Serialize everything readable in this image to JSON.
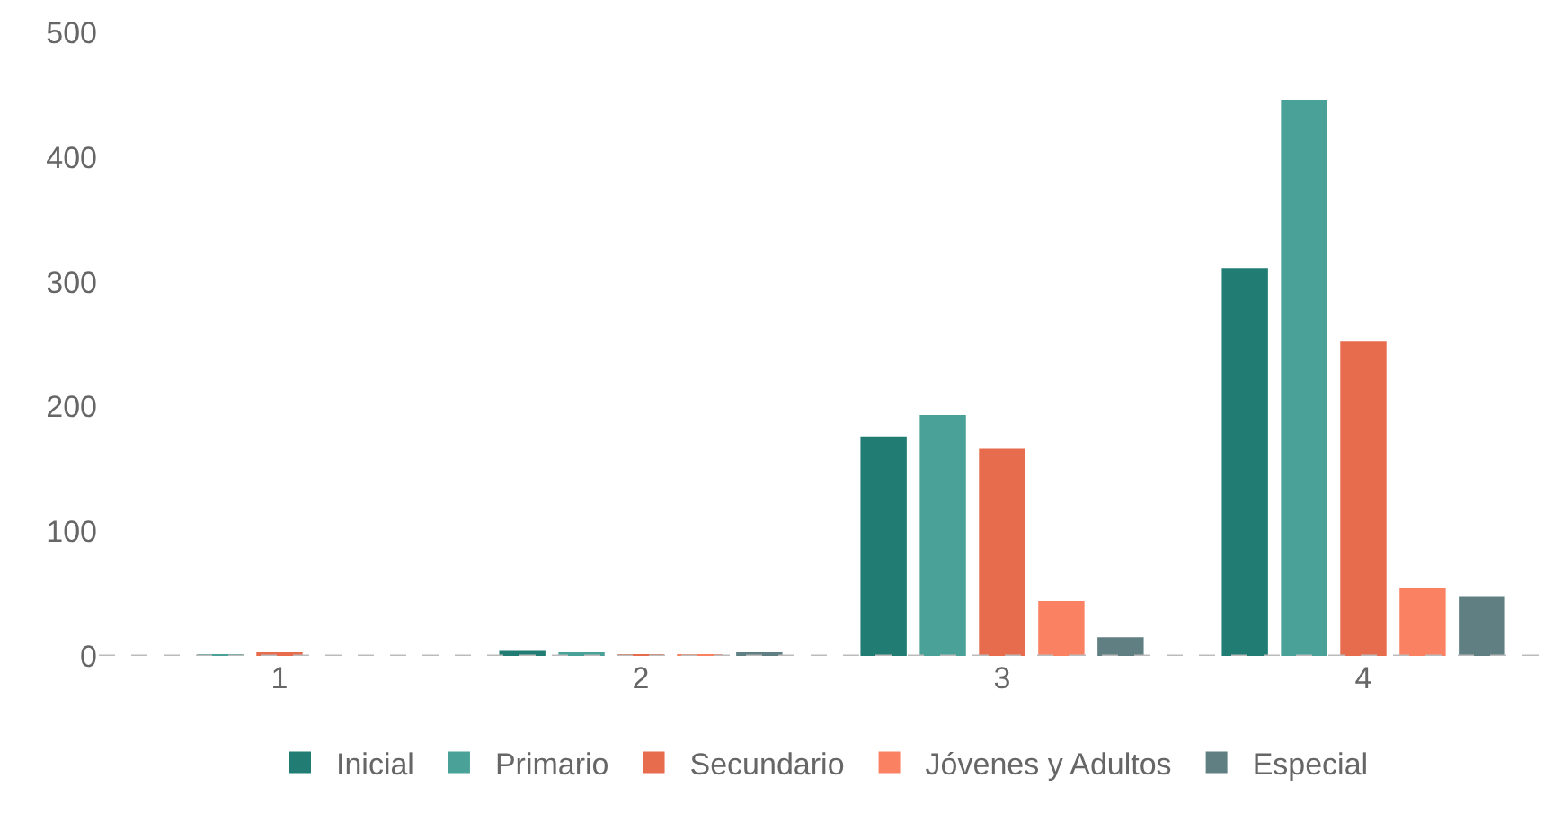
{
  "chart_data": {
    "type": "bar",
    "categories": [
      "1",
      "2",
      "3",
      "4"
    ],
    "series": [
      {
        "name": "Inicial",
        "color": "#217d73",
        "values": [
          0,
          4,
          176,
          311
        ]
      },
      {
        "name": "Primario",
        "color": "#4aa197",
        "values": [
          1,
          2,
          193,
          446
        ]
      },
      {
        "name": "Secundario",
        "color": "#e76b4d",
        "values": [
          2,
          1,
          166,
          252
        ]
      },
      {
        "name": "Jóvenes y Adultos",
        "color": "#fa8263",
        "values": [
          0,
          1,
          44,
          54
        ]
      },
      {
        "name": "Especial",
        "color": "#5f7f82",
        "values": [
          0,
          2,
          15,
          48
        ]
      }
    ],
    "ylim": [
      0,
      500
    ],
    "yticks": [
      0,
      100,
      200,
      300,
      400,
      500
    ],
    "legend": "bottom",
    "ref_lines": [
      {
        "axis": "y",
        "value": 0,
        "color": "#bbbbbb",
        "line_style": "dashed"
      }
    ]
  }
}
